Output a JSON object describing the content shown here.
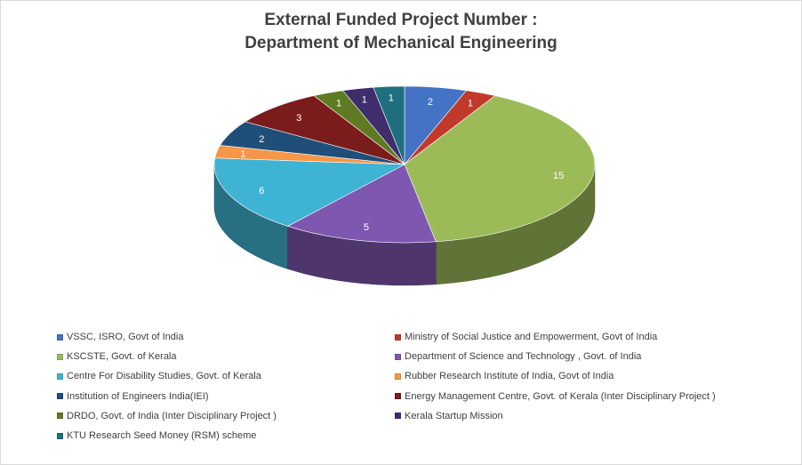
{
  "chart_data": {
    "type": "pie",
    "style": "3d",
    "title": "External Funded Project Number :",
    "subtitle": "Department  of Mechanical  Engineering",
    "legend_position": "bottom",
    "categories": [
      "VSSC, ISRO, Govt of India",
      "Ministry of Social Justice and Empowerment, Govt of India",
      "KSCSTE, Govt. of Kerala",
      "Department of Science and Technology , Govt. of India",
      "Centre For Disability Studies, Govt. of Kerala",
      "Rubber Research Institute of India, Govt of India",
      "Institution of Engineers India(IEI)",
      "Energy Management Centre, Govt. of Kerala  (Inter Disciplinary Project )",
      "DRDO, Govt. of India (Inter Disciplinary Project )",
      "Kerala Startup Mission",
      "KTU Research Seed Money (RSM) scheme"
    ],
    "values": [
      2,
      1,
      15,
      5,
      6,
      1,
      2,
      3,
      1,
      1,
      1
    ],
    "data_labels": [
      "2",
      "1",
      "15",
      "5",
      "6",
      "1",
      "2",
      "3",
      "1",
      "1",
      "1"
    ],
    "colors": [
      "#4472C4",
      "#C0392B",
      "#9BBB59",
      "#7E57B0",
      "#3FB3D3",
      "#F79646",
      "#1F4E79",
      "#7B1C1C",
      "#5E7A23",
      "#3F2E6B",
      "#1F6F7F"
    ]
  }
}
